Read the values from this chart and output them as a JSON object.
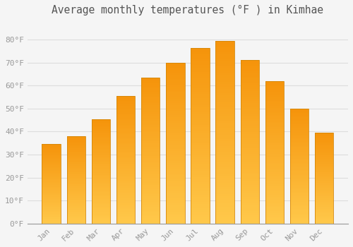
{
  "title": "Average monthly temperatures (°F ) in Kimhae",
  "months": [
    "Jan",
    "Feb",
    "Mar",
    "Apr",
    "May",
    "Jun",
    "Jul",
    "Aug",
    "Sep",
    "Oct",
    "Nov",
    "Dec"
  ],
  "values": [
    34.5,
    38.0,
    45.5,
    55.5,
    63.5,
    70.0,
    76.5,
    79.5,
    71.0,
    62.0,
    50.0,
    39.5
  ],
  "ylim": [
    0,
    88
  ],
  "yticks": [
    0,
    10,
    20,
    30,
    40,
    50,
    60,
    70,
    80
  ],
  "ytick_labels": [
    "0°F",
    "10°F",
    "20°F",
    "30°F",
    "40°F",
    "50°F",
    "60°F",
    "70°F",
    "80°F"
  ],
  "background_color": "#f5f5f5",
  "grid_color": "#dddddd",
  "title_fontsize": 10.5,
  "tick_fontsize": 8,
  "bar_color_bottom": "#FFC84A",
  "bar_color_top": "#F5930A",
  "bar_edge_color": "#D4880A",
  "bar_width": 0.75,
  "fig_width": 5.0,
  "fig_height": 3.5,
  "dpi": 100
}
